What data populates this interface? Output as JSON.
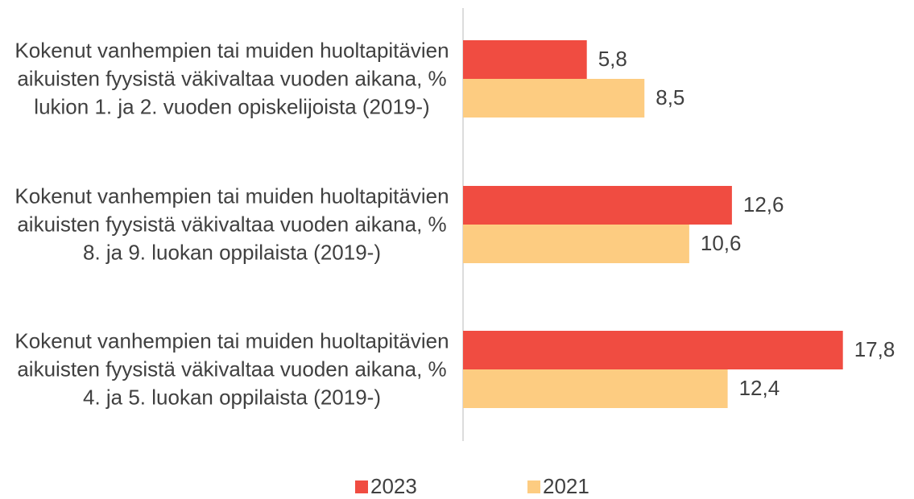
{
  "chart_data": {
    "type": "bar",
    "orientation": "horizontal",
    "categories": [
      "Kokenut vanhempien tai muiden huoltapitävien aikuisten fyysistä väkivaltaa vuoden aikana, % lukion 1. ja 2. vuoden opiskelijoista (2019-)",
      "Kokenut vanhempien tai muiden huoltapitävien aikuisten fyysistä väkivaltaa vuoden aikana, % 8. ja 9. luokan oppilaista (2019-)",
      "Kokenut vanhempien tai muiden huoltapitävien aikuisten fyysistä väkivaltaa vuoden aikana, % 4. ja 5. luokan oppilaista (2019-)"
    ],
    "series": [
      {
        "name": "2023",
        "color": "#f04c41",
        "values": [
          5.8,
          12.6,
          17.8
        ],
        "value_labels": [
          "5,8",
          "12,6",
          "17,8"
        ]
      },
      {
        "name": "2021",
        "color": "#fdcc81",
        "values": [
          8.5,
          10.6,
          12.4
        ],
        "value_labels": [
          "8,5",
          "10,6",
          "12,4"
        ]
      }
    ],
    "xlim": [
      0,
      20
    ],
    "legend": "bottom"
  }
}
